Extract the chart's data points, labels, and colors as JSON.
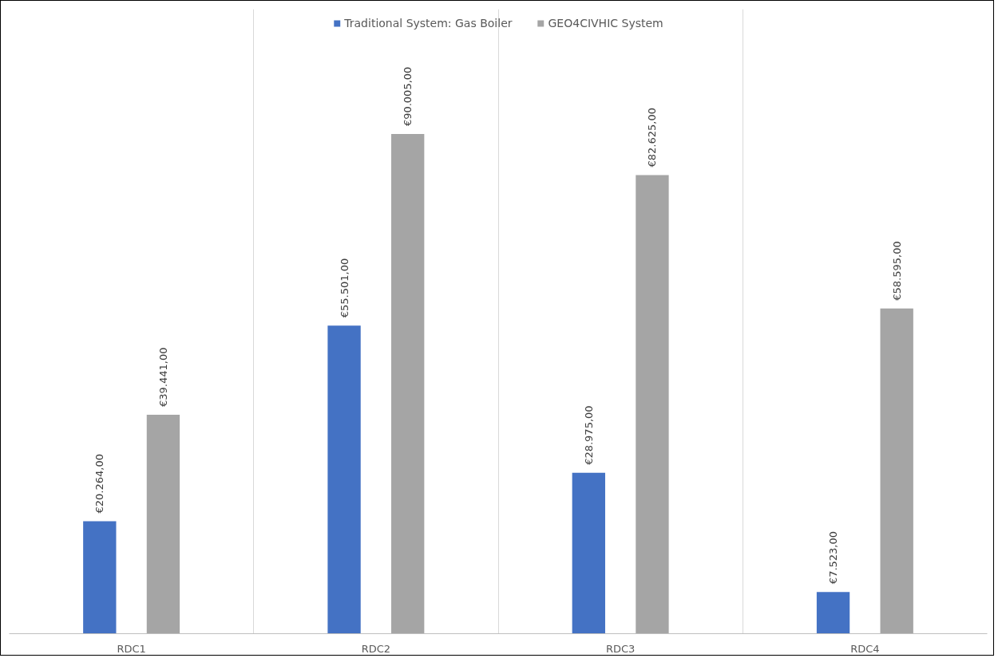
{
  "chart_data": {
    "type": "bar",
    "categories": [
      "RDC1",
      "RDC2",
      "RDC3",
      "RDC4"
    ],
    "series": [
      {
        "name": "Traditional System: Gas Boiler",
        "color": "#4472c4",
        "values": [
          20264,
          55501,
          28975,
          7523
        ],
        "value_labels": [
          "€20.264,00",
          "€55.501,00",
          "€28.975,00",
          "€7.523,00"
        ]
      },
      {
        "name": "GEO4CIVHIC System",
        "color": "#a5a5a5",
        "values": [
          39441,
          90005,
          82625,
          58595
        ],
        "value_labels": [
          "€39.441,00",
          "€90.005,00",
          "€82.625,00",
          "€58.595,00"
        ]
      }
    ],
    "grid": "x",
    "legend": "top"
  }
}
